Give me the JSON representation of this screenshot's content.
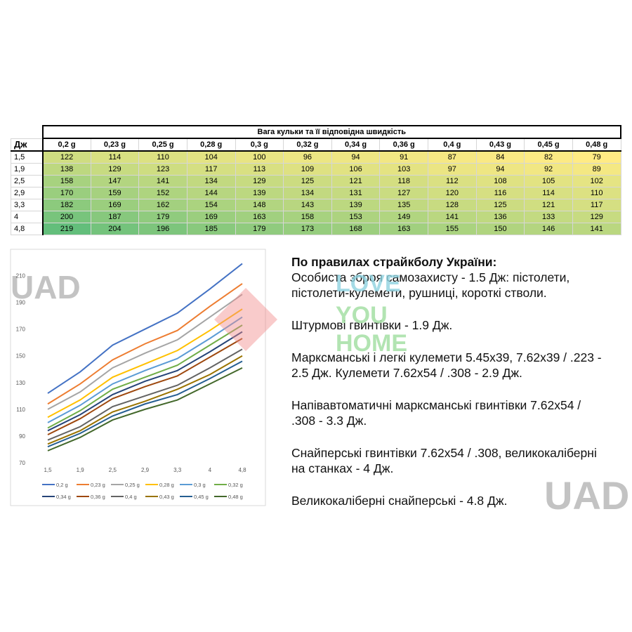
{
  "table": {
    "title": "Вага кульки та її відповідна швидкість",
    "corner": "Дж",
    "columns": [
      "0,2 g",
      "0,23 g",
      "0,25 g",
      "0,28 g",
      "0,3 g",
      "0,32 g",
      "0,34 g",
      "0,36 g",
      "0,4 g",
      "0,43 g",
      "0,45 g",
      "0,48 g"
    ],
    "rows": [
      {
        "label": "1,5",
        "values": [
          122,
          114,
          110,
          104,
          100,
          96,
          94,
          91,
          87,
          84,
          82,
          79
        ]
      },
      {
        "label": "1,9",
        "values": [
          138,
          129,
          123,
          117,
          113,
          109,
          106,
          103,
          97,
          94,
          92,
          89
        ]
      },
      {
        "label": "2,5",
        "values": [
          158,
          147,
          141,
          134,
          129,
          125,
          121,
          118,
          112,
          108,
          105,
          102
        ]
      },
      {
        "label": "2,9",
        "values": [
          170,
          159,
          152,
          144,
          139,
          134,
          131,
          127,
          120,
          116,
          114,
          110
        ]
      },
      {
        "label": "3,3",
        "values": [
          182,
          169,
          162,
          154,
          148,
          143,
          139,
          135,
          128,
          125,
          121,
          117
        ]
      },
      {
        "label": "4",
        "values": [
          200,
          187,
          179,
          169,
          163,
          158,
          153,
          149,
          141,
          136,
          133,
          129
        ]
      },
      {
        "label": "4,8",
        "values": [
          219,
          204,
          196,
          185,
          179,
          173,
          168,
          163,
          155,
          150,
          146,
          141
        ]
      }
    ]
  },
  "chart_data": {
    "type": "line",
    "categories": [
      "1,5",
      "1,9",
      "2,5",
      "2,9",
      "3,3",
      "4",
      "4,8"
    ],
    "series": [
      {
        "name": "0,2 g",
        "color": "#4472c4",
        "values": [
          122,
          138,
          158,
          170,
          182,
          200,
          219
        ]
      },
      {
        "name": "0,23 g",
        "color": "#ed7d31",
        "values": [
          114,
          129,
          147,
          159,
          169,
          187,
          204
        ]
      },
      {
        "name": "0,25 g",
        "color": "#a5a5a5",
        "values": [
          110,
          123,
          141,
          152,
          162,
          179,
          196
        ]
      },
      {
        "name": "0,28 g",
        "color": "#ffc000",
        "values": [
          104,
          117,
          134,
          144,
          154,
          169,
          185
        ]
      },
      {
        "name": "0,3 g",
        "color": "#5b9bd5",
        "values": [
          100,
          113,
          129,
          139,
          148,
          163,
          179
        ]
      },
      {
        "name": "0,32 g",
        "color": "#70ad47",
        "values": [
          96,
          109,
          125,
          134,
          143,
          158,
          173
        ]
      },
      {
        "name": "0,34 g",
        "color": "#264478",
        "values": [
          94,
          106,
          121,
          131,
          139,
          153,
          168
        ]
      },
      {
        "name": "0,36 g",
        "color": "#9e480e",
        "values": [
          91,
          103,
          118,
          127,
          135,
          149,
          163
        ]
      },
      {
        "name": "0,4 g",
        "color": "#636363",
        "values": [
          87,
          97,
          112,
          120,
          128,
          141,
          155
        ]
      },
      {
        "name": "0,43 g",
        "color": "#997300",
        "values": [
          84,
          94,
          108,
          116,
          125,
          136,
          150
        ]
      },
      {
        "name": "0,45 g",
        "color": "#255e91",
        "values": [
          82,
          92,
          105,
          114,
          121,
          133,
          146
        ]
      },
      {
        "name": "0,48 g",
        "color": "#43682b",
        "values": [
          79,
          89,
          102,
          110,
          117,
          129,
          141
        ]
      }
    ],
    "ylim": [
      70,
      225
    ],
    "yticks": [
      70,
      90,
      110,
      130,
      150,
      170,
      190,
      210
    ]
  },
  "notes": {
    "heading": "По правилах страйкболу України:",
    "paragraphs": [
      "Особиста зброя самозахисту - 1.5 Дж: пістолети, пістолети-кулемети, рушниці, короткі стволи.",
      "Штурмові гвинтівки - 1.9 Дж.",
      "Марксманські і легкі кулемети 5.45x39, 7.62x39 / .223 - 2.5 Дж. Кулемети 7.62x54 / .308 - 2.9 Дж.",
      "Напівавтоматичні марксманські гвинтівки 7.62x54 / .308 - 3.3 Дж.",
      "Снайперські гвинтівки 7.62x54 / .308, великокаліберні на станках - 4 Дж.",
      "Великокаліберні снайперські - 4.8 Дж."
    ]
  },
  "watermarks": {
    "brand": "UAD",
    "logo": [
      "LOVE",
      "YOU",
      "HOME"
    ]
  }
}
